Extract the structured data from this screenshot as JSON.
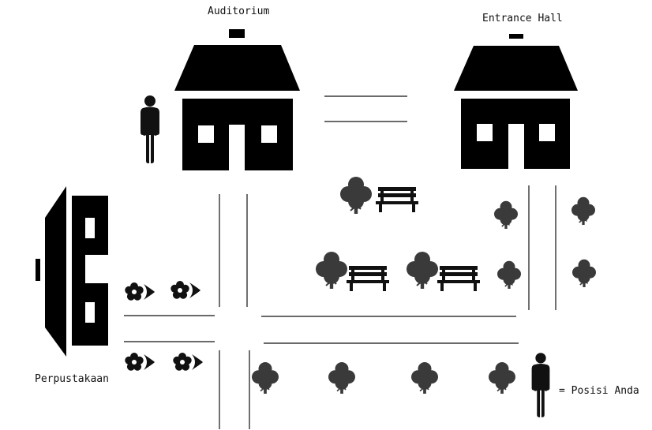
{
  "labels": {
    "auditorium": "Auditorium",
    "entrance_hall": "Entrance Hall",
    "perpustakaan": "Perpustakaan",
    "legend": "= Posisi Anda"
  },
  "colors": {
    "building": "#000000",
    "tree": "#3a3a3a",
    "road_line": "#111111",
    "background": "#ffffff"
  },
  "icons": [
    "house-icon",
    "person-icon",
    "tree-icon",
    "bench-icon",
    "flower-icon",
    "library-building-icon"
  ]
}
